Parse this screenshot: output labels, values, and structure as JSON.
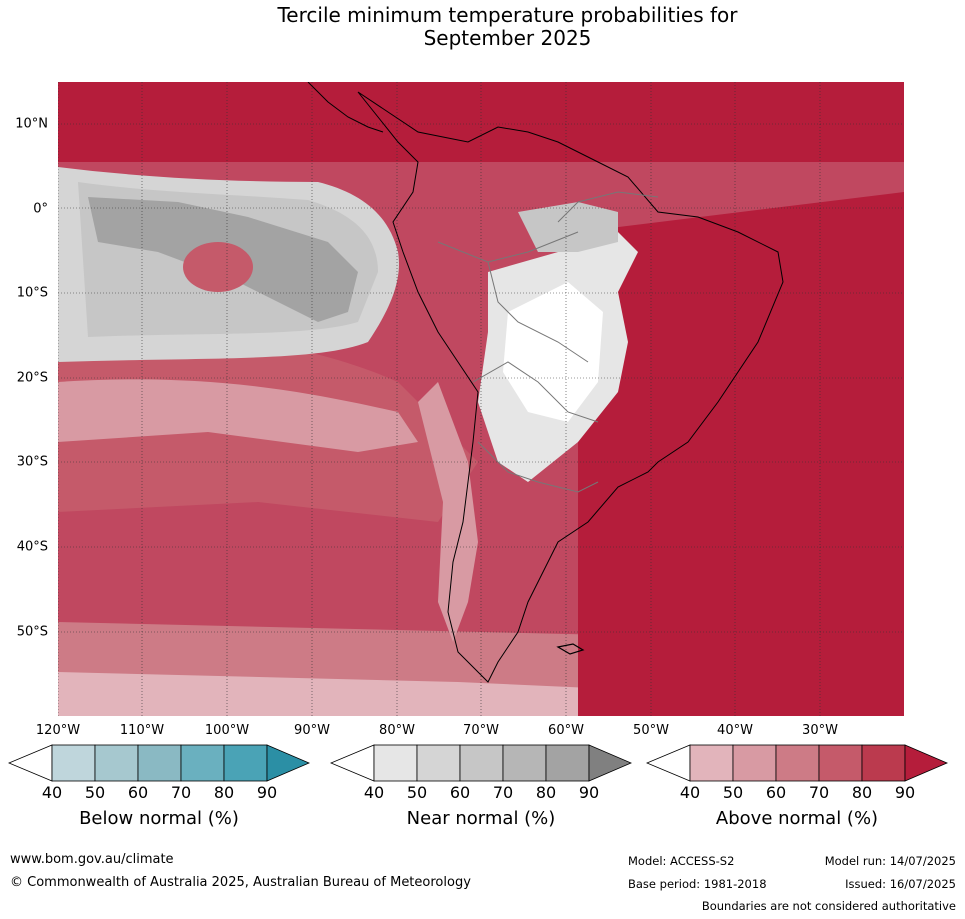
{
  "title": {
    "line1": "Tercile minimum temperature probabilities for",
    "line2": "September 2025"
  },
  "map": {
    "lat_labels": [
      "10°N",
      "0°",
      "10°S",
      "20°S",
      "30°S",
      "40°S",
      "50°S"
    ],
    "lon_labels": [
      "120°W",
      "110°W",
      "100°W",
      "90°W",
      "80°W",
      "70°W",
      "60°W",
      "50°W",
      "40°W",
      "30°W"
    ]
  },
  "colorbars": [
    {
      "title": "Below normal (%)",
      "ticks": [
        "40",
        "50",
        "60",
        "70",
        "80",
        "90"
      ],
      "colors": [
        "#ffffff",
        "#bfd6dc",
        "#a6c8cf",
        "#8ab9c3",
        "#6ab0bf",
        "#4aa3b6",
        "#2b8fa5"
      ]
    },
    {
      "title": "Near normal (%)",
      "ticks": [
        "40",
        "50",
        "60",
        "70",
        "80",
        "90"
      ],
      "colors": [
        "#ffffff",
        "#e6e6e6",
        "#d5d5d5",
        "#c6c6c6",
        "#b6b6b6",
        "#a3a3a3",
        "#808080"
      ]
    },
    {
      "title": "Above normal (%)",
      "ticks": [
        "40",
        "50",
        "60",
        "70",
        "80",
        "90"
      ],
      "colors": [
        "#ffffff",
        "#e2b4bb",
        "#d89aa3",
        "#cd7b86",
        "#c55a6a",
        "#bb3a4e",
        "#b51d3b"
      ]
    }
  ],
  "footer": {
    "website": "www.bom.gov.au/climate",
    "copyright": "© Commonwealth of Australia 2025, Australian Bureau of Meteorology",
    "model": "Model: ACCESS-S2",
    "model_run": "Model run: 14/07/2025",
    "base_period": "Base period: 1981-2018",
    "issued": "Issued: 16/07/2025",
    "disclaimer": "Boundaries are not considered authoritative"
  },
  "colors": {
    "above_90": "#b51d3b",
    "above_80": "#bb3a4e",
    "above_70": "#c55a6a",
    "above_60": "#cd7b86",
    "above_50": "#d89aa3",
    "above_40": "#e2b4bb",
    "near_40": "#e6e6e6",
    "near_50": "#d5d5d5",
    "near_60": "#c6c6c6",
    "near_80": "#a3a3a3"
  }
}
